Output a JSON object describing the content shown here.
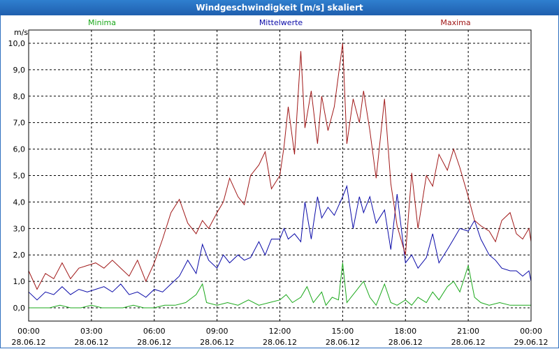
{
  "window": {
    "title": "Windgeschwindigkeit [m/s] skaliert"
  },
  "chart_data": {
    "type": "line",
    "title": "Windgeschwindigkeit [m/s] skaliert",
    "ylabel": "m/s",
    "xlabel": "",
    "ylim": [
      -0.5,
      10.5
    ],
    "xlim": [
      0,
      24
    ],
    "grid": true,
    "y_ticks": [
      "0,0",
      "1,0",
      "2,0",
      "3,0",
      "4,0",
      "5,0",
      "6,0",
      "7,0",
      "8,0",
      "9,0",
      "10,0"
    ],
    "y_tick_values": [
      0,
      1,
      2,
      3,
      4,
      5,
      6,
      7,
      8,
      9,
      10
    ],
    "x_ticks": [
      {
        "time": "00:00",
        "date": "28.06.12"
      },
      {
        "time": "03:00",
        "date": "28.06.12"
      },
      {
        "time": "06:00",
        "date": "28.06.12"
      },
      {
        "time": "09:00",
        "date": "28.06.12"
      },
      {
        "time": "12:00",
        "date": "28.06.12"
      },
      {
        "time": "15:00",
        "date": "28.06.12"
      },
      {
        "time": "18:00",
        "date": "28.06.12"
      },
      {
        "time": "21:00",
        "date": "28.06.12"
      },
      {
        "time": "00:00",
        "date": "29.06.12"
      }
    ],
    "x_tick_hours": [
      0,
      3,
      6,
      9,
      12,
      15,
      18,
      21,
      24
    ],
    "series": [
      {
        "name": "Minima",
        "color": "#1aa81a",
        "x": [
          0,
          0.5,
          1,
          1.5,
          2,
          2.5,
          3,
          3.5,
          4,
          4.5,
          5,
          5.5,
          6,
          6.5,
          7,
          7.5,
          8,
          8.3,
          8.5,
          9,
          9.5,
          10,
          10.5,
          11,
          11.5,
          12,
          12.3,
          12.6,
          13,
          13.3,
          13.6,
          14,
          14.2,
          14.5,
          14.8,
          15,
          15.2,
          15.5,
          16,
          16.3,
          16.6,
          17,
          17.3,
          17.6,
          18,
          18.3,
          18.6,
          19,
          19.3,
          19.6,
          20,
          20.3,
          20.6,
          21,
          21.3,
          21.6,
          22,
          22.5,
          23,
          23.5,
          24
        ],
        "values": [
          0.0,
          0.0,
          0.0,
          0.1,
          0.0,
          0.0,
          0.1,
          0.0,
          0.0,
          0.0,
          0.1,
          0.0,
          0.0,
          0.1,
          0.1,
          0.2,
          0.5,
          0.9,
          0.2,
          0.1,
          0.2,
          0.1,
          0.3,
          0.1,
          0.2,
          0.3,
          0.5,
          0.2,
          0.4,
          0.8,
          0.2,
          0.6,
          0.1,
          0.4,
          0.3,
          1.7,
          0.2,
          0.5,
          1.0,
          0.4,
          0.1,
          0.9,
          0.2,
          0.1,
          0.3,
          0.1,
          0.4,
          0.2,
          0.6,
          0.3,
          0.8,
          1.0,
          0.6,
          1.6,
          0.4,
          0.2,
          0.1,
          0.2,
          0.1,
          0.1,
          0.1
        ]
      },
      {
        "name": "Mittelwerte",
        "color": "#0a0aa8",
        "x": [
          0,
          0.4,
          0.8,
          1.2,
          1.6,
          2,
          2.4,
          2.8,
          3.2,
          3.6,
          4,
          4.4,
          4.8,
          5.2,
          5.6,
          6,
          6.4,
          6.8,
          7.2,
          7.6,
          8,
          8.3,
          8.6,
          9,
          9.3,
          9.6,
          10,
          10.3,
          10.6,
          11,
          11.3,
          11.6,
          12,
          12.2,
          12.4,
          12.7,
          13,
          13.2,
          13.5,
          13.8,
          14,
          14.3,
          14.6,
          15,
          15.2,
          15.5,
          15.8,
          16,
          16.3,
          16.6,
          17,
          17.3,
          17.6,
          18,
          18.3,
          18.6,
          19,
          19.3,
          19.6,
          20,
          20.3,
          20.6,
          21,
          21.3,
          21.6,
          22,
          22.3,
          22.6,
          23,
          23.3,
          23.6,
          23.9,
          24
        ],
        "values": [
          0.6,
          0.3,
          0.6,
          0.5,
          0.8,
          0.5,
          0.7,
          0.6,
          0.7,
          0.8,
          0.6,
          0.9,
          0.5,
          0.6,
          0.4,
          0.7,
          0.6,
          0.9,
          1.2,
          1.8,
          1.3,
          2.4,
          1.8,
          1.5,
          2.0,
          1.7,
          2.0,
          1.8,
          1.9,
          2.5,
          2.0,
          2.6,
          2.6,
          3.0,
          2.6,
          2.8,
          2.5,
          4.0,
          2.6,
          4.2,
          3.4,
          3.8,
          3.5,
          4.2,
          4.6,
          3.0,
          4.2,
          3.6,
          4.2,
          3.2,
          3.7,
          2.2,
          4.3,
          1.7,
          2.0,
          1.5,
          1.9,
          2.8,
          1.7,
          2.2,
          2.6,
          3.0,
          2.9,
          3.3,
          2.6,
          2.0,
          1.8,
          1.5,
          1.4,
          1.4,
          1.2,
          1.4,
          1.0
        ]
      },
      {
        "name": "Maxima",
        "color": "#a01818",
        "x": [
          0,
          0.4,
          0.8,
          1.2,
          1.6,
          2,
          2.4,
          2.8,
          3.2,
          3.6,
          4,
          4.4,
          4.8,
          5.2,
          5.6,
          6,
          6.4,
          6.8,
          7.2,
          7.6,
          8,
          8.3,
          8.6,
          9,
          9.3,
          9.6,
          10,
          10.3,
          10.6,
          11,
          11.3,
          11.6,
          12,
          12.2,
          12.4,
          12.7,
          13,
          13.2,
          13.5,
          13.8,
          14,
          14.3,
          14.6,
          15,
          15.2,
          15.5,
          15.8,
          16,
          16.3,
          16.6,
          17,
          17.3,
          17.6,
          18,
          18.3,
          18.6,
          19,
          19.3,
          19.6,
          20,
          20.3,
          20.6,
          21,
          21.3,
          21.6,
          22,
          22.3,
          22.6,
          23,
          23.3,
          23.6,
          23.9,
          24
        ],
        "values": [
          1.4,
          0.7,
          1.3,
          1.1,
          1.7,
          1.1,
          1.5,
          1.6,
          1.7,
          1.5,
          1.8,
          1.5,
          1.2,
          1.8,
          1.0,
          1.7,
          2.6,
          3.6,
          4.1,
          3.2,
          2.8,
          3.3,
          3.0,
          3.6,
          4.0,
          4.9,
          4.2,
          3.9,
          5.0,
          5.4,
          5.9,
          4.5,
          5.0,
          6.1,
          7.6,
          5.8,
          9.7,
          6.8,
          8.2,
          6.2,
          8.0,
          6.7,
          7.6,
          10.0,
          6.2,
          7.9,
          7.0,
          8.2,
          6.7,
          4.9,
          7.9,
          4.7,
          3.1,
          2.0,
          5.1,
          3.0,
          5.0,
          4.6,
          5.8,
          5.2,
          6.0,
          5.3,
          4.2,
          3.3,
          3.1,
          2.9,
          2.5,
          3.3,
          3.6,
          2.8,
          2.6,
          3.0,
          2.5
        ]
      }
    ]
  }
}
